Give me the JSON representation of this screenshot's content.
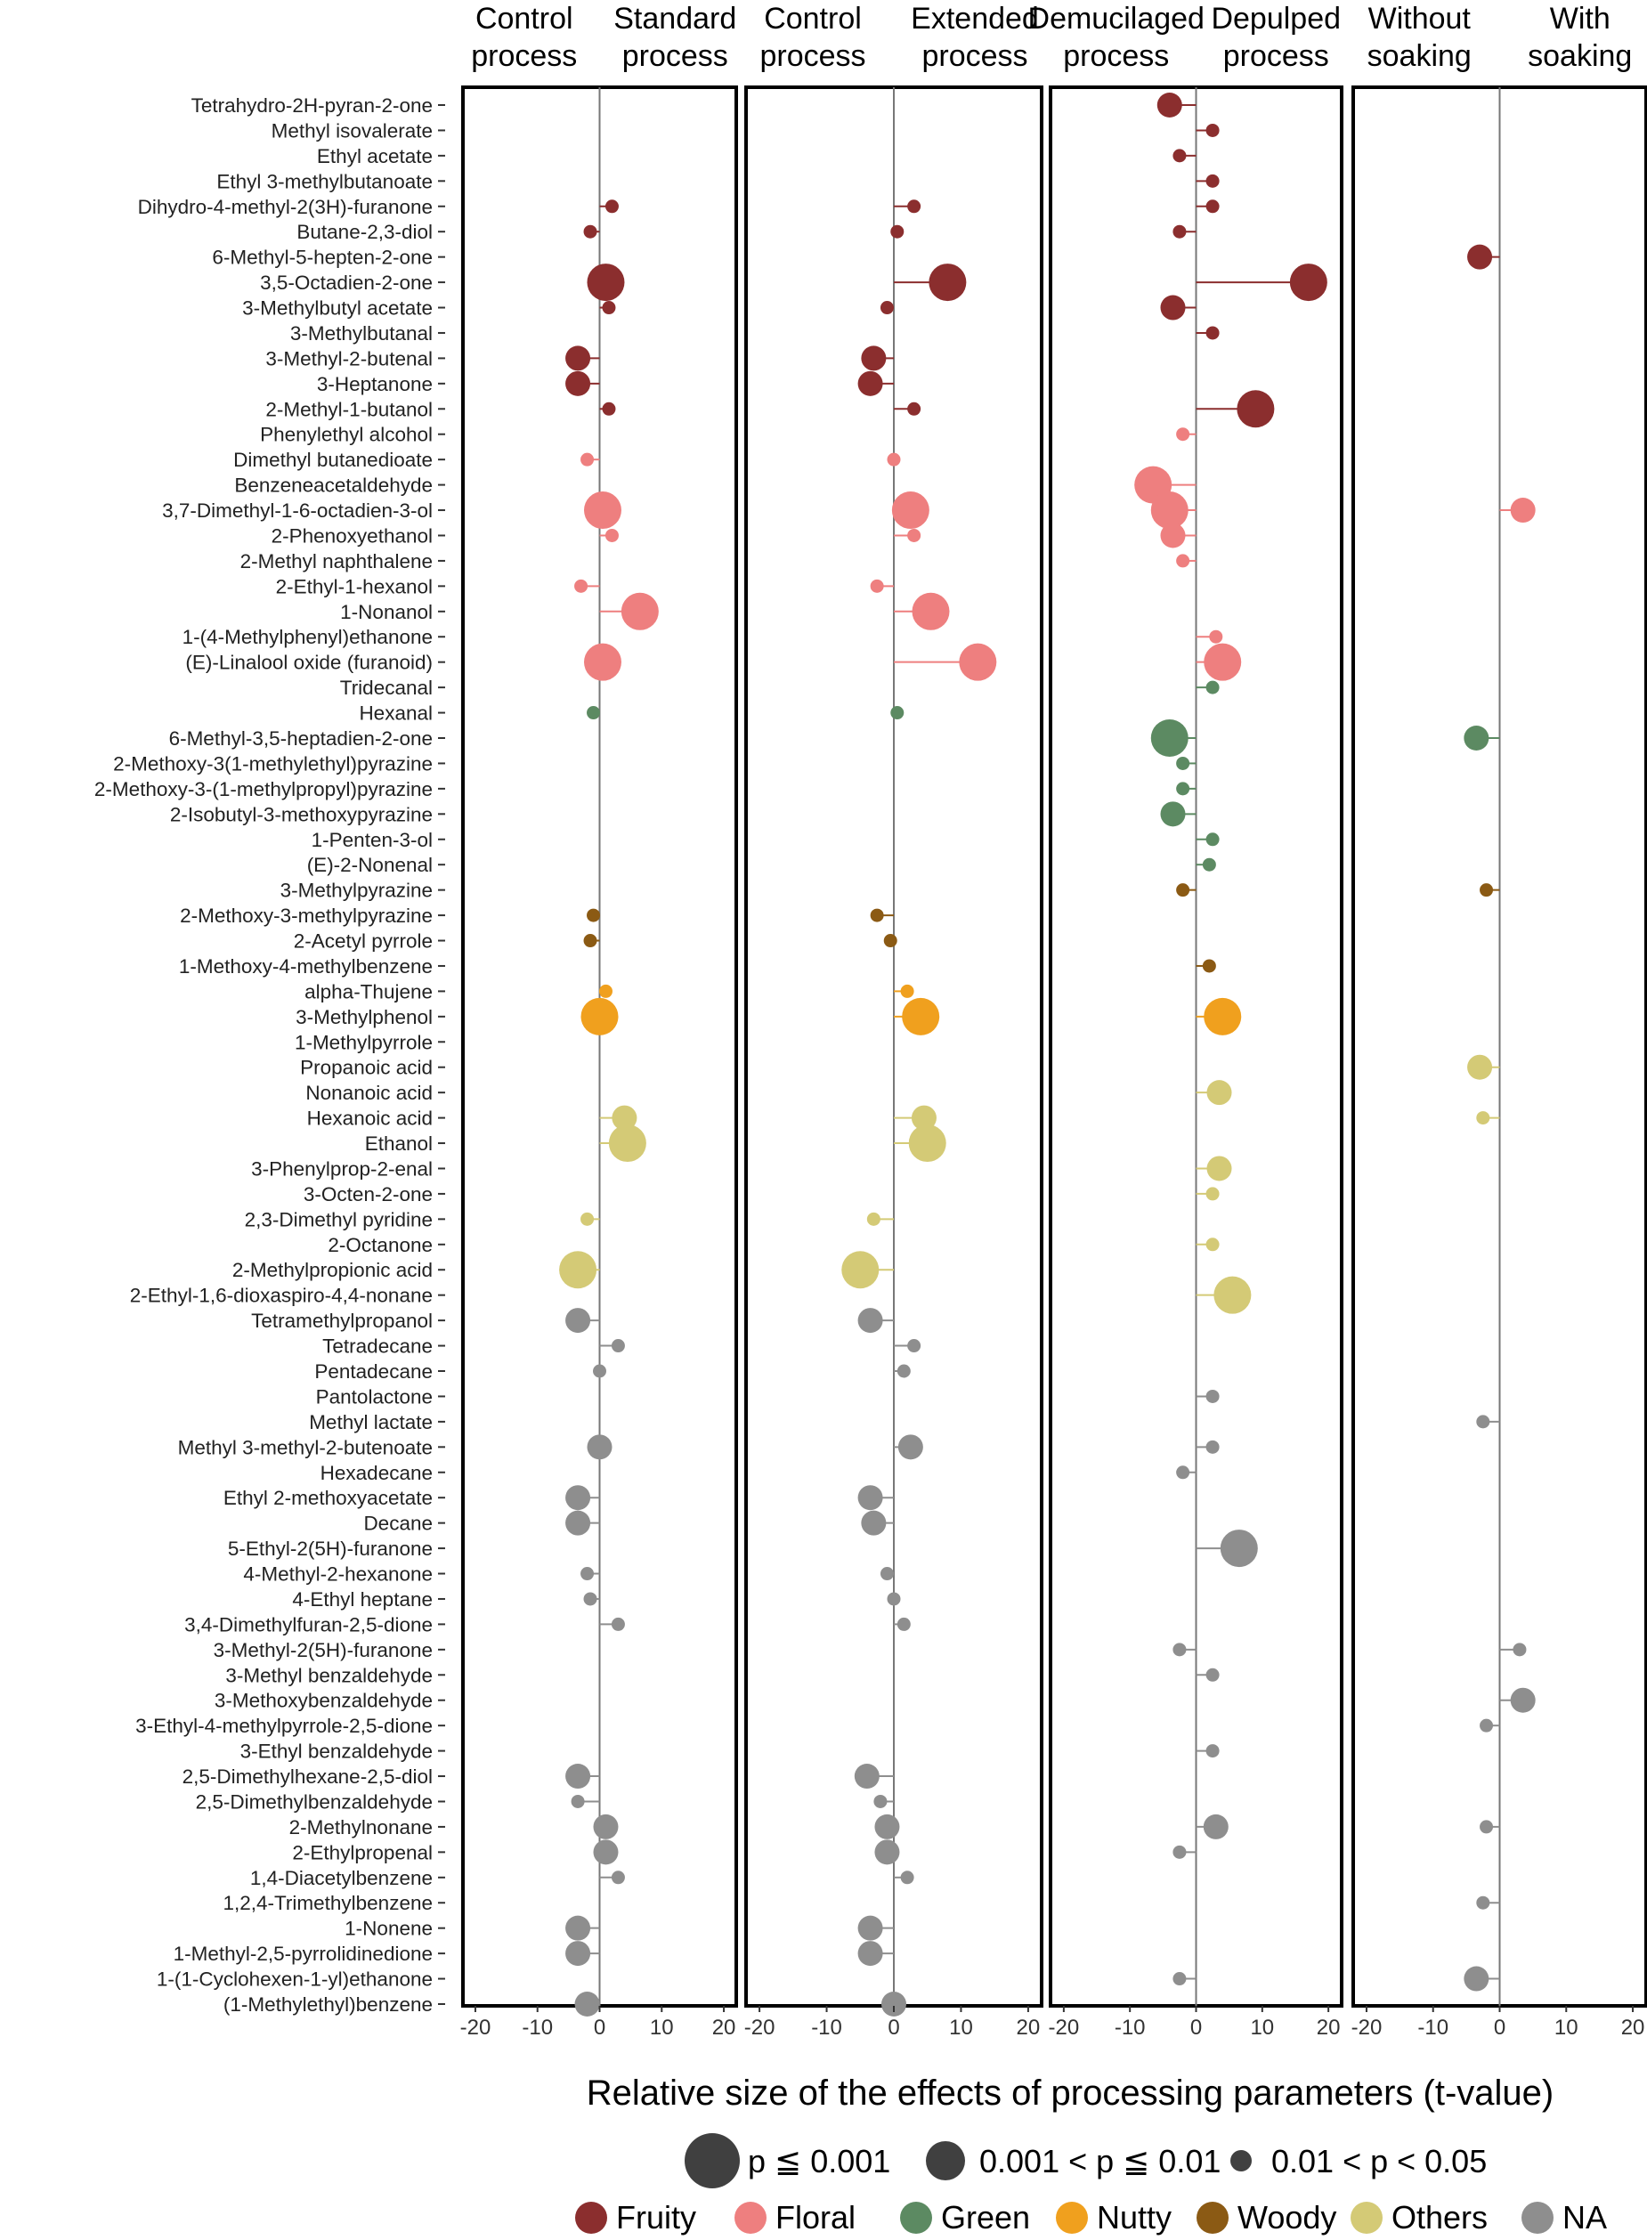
{
  "chart_data": {
    "type": "scatter",
    "subtype": "lollipop bubble panels",
    "xlabel": "Relative size of the effects of processing parameters (t-value)",
    "xlim": [
      -22,
      22
    ],
    "xticks": [
      -20,
      -10,
      0,
      10,
      20
    ],
    "xtick_labels": [
      "-20",
      "-10",
      "0",
      "10",
      "20"
    ],
    "panels": [
      {
        "left_label": [
          "Control",
          "process"
        ],
        "right_label": [
          "Standard",
          "process"
        ]
      },
      {
        "left_label": [
          "Control",
          "process"
        ],
        "right_label": [
          "Extended",
          "process"
        ]
      },
      {
        "left_label": [
          "Demucilaged",
          "process"
        ],
        "right_label": [
          "Depulped",
          "process"
        ]
      },
      {
        "left_label": [
          "Without",
          "soaking"
        ],
        "right_label": [
          "With",
          "soaking"
        ]
      }
    ],
    "significance_legend": [
      {
        "label": "p ≦ 0.001",
        "size": 3
      },
      {
        "label": "0.001 < p ≦ 0.01",
        "size": 2
      },
      {
        "label": "0.01 < p < 0.05",
        "size": 1
      }
    ],
    "category_legend": [
      {
        "label": "Fruity",
        "color": "#8B2E2E"
      },
      {
        "label": "Floral",
        "color": "#EE7F7F"
      },
      {
        "label": "Green",
        "color": "#5C8A62"
      },
      {
        "label": "Nutty",
        "color": "#F0A01E"
      },
      {
        "label": "Woody",
        "color": "#8B5A14"
      },
      {
        "label": "Others",
        "color": "#D4CA76"
      },
      {
        "label": "NA",
        "color": "#8E8E8E"
      }
    ],
    "compounds": [
      {
        "name": "Tetrahydro-2H-pyran-2-one",
        "cat": "Fruity",
        "t": [
          null,
          null,
          [
            -4,
            2
          ],
          null
        ]
      },
      {
        "name": "Methyl isovalerate",
        "cat": "Fruity",
        "t": [
          null,
          null,
          [
            2.5,
            1
          ],
          null
        ]
      },
      {
        "name": "Ethyl acetate",
        "cat": "Fruity",
        "t": [
          null,
          null,
          [
            -2.5,
            1
          ],
          null
        ]
      },
      {
        "name": "Ethyl 3-methylbutanoate",
        "cat": "Fruity",
        "t": [
          null,
          null,
          [
            2.5,
            1
          ],
          null
        ]
      },
      {
        "name": "Dihydro-4-methyl-2(3H)-furanone",
        "cat": "Fruity",
        "t": [
          [
            2,
            1
          ],
          [
            3,
            1
          ],
          [
            2.5,
            1
          ],
          null
        ]
      },
      {
        "name": "Butane-2,3-diol",
        "cat": "Fruity",
        "t": [
          [
            -1.5,
            1
          ],
          [
            0.5,
            1
          ],
          [
            -2.5,
            1
          ],
          null
        ]
      },
      {
        "name": "6-Methyl-5-hepten-2-one",
        "cat": "Fruity",
        "t": [
          null,
          null,
          null,
          [
            -3,
            2
          ]
        ]
      },
      {
        "name": "3,5-Octadien-2-one",
        "cat": "Fruity",
        "t": [
          [
            1,
            3
          ],
          [
            8,
            3
          ],
          [
            17,
            3
          ],
          null
        ]
      },
      {
        "name": "3-Methylbutyl acetate",
        "cat": "Fruity",
        "t": [
          [
            1.5,
            1
          ],
          [
            -1,
            1
          ],
          [
            -3.5,
            2
          ],
          null
        ]
      },
      {
        "name": "3-Methylbutanal",
        "cat": "Fruity",
        "t": [
          null,
          null,
          [
            2.5,
            1
          ],
          null
        ]
      },
      {
        "name": "3-Methyl-2-butenal",
        "cat": "Fruity",
        "t": [
          [
            -3.5,
            2
          ],
          [
            -3,
            2
          ],
          null,
          null
        ]
      },
      {
        "name": "3-Heptanone",
        "cat": "Fruity",
        "t": [
          [
            -3.5,
            2
          ],
          [
            -3.5,
            2
          ],
          null,
          null
        ]
      },
      {
        "name": "2-Methyl-1-butanol",
        "cat": "Fruity",
        "t": [
          [
            1.5,
            1
          ],
          [
            3,
            1
          ],
          [
            9,
            3
          ],
          null
        ]
      },
      {
        "name": "Phenylethyl alcohol",
        "cat": "Floral",
        "t": [
          null,
          null,
          [
            -2,
            1
          ],
          null
        ]
      },
      {
        "name": "Dimethyl butanedioate",
        "cat": "Floral",
        "t": [
          [
            -2,
            1
          ],
          [
            0,
            1
          ],
          null,
          null
        ]
      },
      {
        "name": "Benzeneacetaldehyde",
        "cat": "Floral",
        "t": [
          null,
          null,
          [
            -6.5,
            3
          ],
          null
        ]
      },
      {
        "name": "3,7-Dimethyl-1-6-octadien-3-ol",
        "cat": "Floral",
        "t": [
          [
            0.5,
            3
          ],
          [
            2.5,
            3
          ],
          [
            -4,
            3
          ],
          [
            3.5,
            2
          ]
        ]
      },
      {
        "name": "2-Phenoxyethanol",
        "cat": "Floral",
        "t": [
          [
            2,
            1
          ],
          [
            3,
            1
          ],
          [
            -3.5,
            2
          ],
          null
        ]
      },
      {
        "name": "2-Methyl naphthalene",
        "cat": "Floral",
        "t": [
          null,
          null,
          [
            -2,
            1
          ],
          null
        ]
      },
      {
        "name": "2-Ethyl-1-hexanol",
        "cat": "Floral",
        "t": [
          [
            -3,
            1
          ],
          [
            -2.5,
            1
          ],
          null,
          null
        ]
      },
      {
        "name": "1-Nonanol",
        "cat": "Floral",
        "t": [
          [
            6.5,
            3
          ],
          [
            5.5,
            3
          ],
          null,
          null
        ]
      },
      {
        "name": "1-(4-Methylphenyl)ethanone",
        "cat": "Floral",
        "t": [
          null,
          null,
          [
            3,
            1
          ],
          null
        ]
      },
      {
        "name": "(E)-Linalool oxide (furanoid)",
        "cat": "Floral",
        "t": [
          [
            0.5,
            3
          ],
          [
            12.5,
            3
          ],
          [
            4,
            3
          ],
          null
        ]
      },
      {
        "name": "Tridecanal",
        "cat": "Green",
        "t": [
          null,
          null,
          [
            2.5,
            1
          ],
          null
        ]
      },
      {
        "name": "Hexanal",
        "cat": "Green",
        "t": [
          [
            -1,
            1
          ],
          [
            0.5,
            1
          ],
          null,
          null
        ]
      },
      {
        "name": "6-Methyl-3,5-heptadien-2-one",
        "cat": "Green",
        "t": [
          null,
          null,
          [
            -4,
            3
          ],
          [
            -3.5,
            2
          ]
        ]
      },
      {
        "name": "2-Methoxy-3(1-methylethyl)pyrazine",
        "cat": "Green",
        "t": [
          null,
          null,
          [
            -2,
            1
          ],
          null
        ]
      },
      {
        "name": "2-Methoxy-3-(1-methylpropyl)pyrazine",
        "cat": "Green",
        "t": [
          null,
          null,
          [
            -2,
            1
          ],
          null
        ]
      },
      {
        "name": "2-Isobutyl-3-methoxypyrazine",
        "cat": "Green",
        "t": [
          null,
          null,
          [
            -3.5,
            2
          ],
          null
        ]
      },
      {
        "name": "1-Penten-3-ol",
        "cat": "Green",
        "t": [
          null,
          null,
          [
            2.5,
            1
          ],
          null
        ]
      },
      {
        "name": "(E)-2-Nonenal",
        "cat": "Green",
        "t": [
          null,
          null,
          [
            2,
            1
          ],
          null
        ]
      },
      {
        "name": "3-Methylpyrazine",
        "cat": "Woody",
        "t": [
          null,
          null,
          [
            -2,
            1
          ],
          [
            -2,
            1
          ]
        ]
      },
      {
        "name": "2-Methoxy-3-methylpyrazine",
        "cat": "Woody",
        "t": [
          [
            -1,
            1
          ],
          [
            -2.5,
            1
          ],
          null,
          null
        ]
      },
      {
        "name": "2-Acetyl pyrrole",
        "cat": "Woody",
        "t": [
          [
            -1.5,
            1
          ],
          [
            -0.5,
            1
          ],
          null,
          null
        ]
      },
      {
        "name": "1-Methoxy-4-methylbenzene",
        "cat": "Woody",
        "t": [
          null,
          null,
          [
            2,
            1
          ],
          null
        ]
      },
      {
        "name": "alpha-Thujene",
        "cat": "Nutty",
        "t": [
          [
            1,
            1
          ],
          [
            2,
            1
          ],
          null,
          null
        ]
      },
      {
        "name": "3-Methylphenol",
        "cat": "Nutty",
        "t": [
          [
            0,
            3
          ],
          [
            4,
            3
          ],
          [
            4,
            3
          ],
          null
        ]
      },
      {
        "name": "1-Methylpyrrole",
        "cat": "Nutty",
        "t": [
          null,
          null,
          null,
          null
        ]
      },
      {
        "name": "Propanoic acid",
        "cat": "Others",
        "t": [
          null,
          null,
          null,
          [
            -3,
            2
          ]
        ]
      },
      {
        "name": "Nonanoic acid",
        "cat": "Others",
        "t": [
          null,
          null,
          [
            3.5,
            2
          ],
          null
        ]
      },
      {
        "name": "Hexanoic acid",
        "cat": "Others",
        "t": [
          [
            4,
            2
          ],
          [
            4.5,
            2
          ],
          null,
          [
            -2.5,
            1
          ]
        ]
      },
      {
        "name": "Ethanol",
        "cat": "Others",
        "t": [
          [
            4.5,
            3
          ],
          [
            5,
            3
          ],
          null,
          null
        ]
      },
      {
        "name": "3-Phenylprop-2-enal",
        "cat": "Others",
        "t": [
          null,
          null,
          [
            3.5,
            2
          ],
          null
        ]
      },
      {
        "name": "3-Octen-2-one",
        "cat": "Others",
        "t": [
          null,
          null,
          [
            2.5,
            1
          ],
          null
        ]
      },
      {
        "name": "2,3-Dimethyl pyridine",
        "cat": "Others",
        "t": [
          [
            -2,
            1
          ],
          [
            -3,
            1
          ],
          null,
          null
        ]
      },
      {
        "name": "2-Octanone",
        "cat": "Others",
        "t": [
          null,
          null,
          [
            2.5,
            1
          ],
          null
        ]
      },
      {
        "name": "2-Methylpropionic acid",
        "cat": "Others",
        "t": [
          [
            -3.5,
            3
          ],
          [
            -5,
            3
          ],
          null,
          null
        ]
      },
      {
        "name": "2-Ethyl-1,6-dioxaspiro-4,4-nonane",
        "cat": "Others",
        "t": [
          null,
          null,
          [
            5.5,
            3
          ],
          null
        ]
      },
      {
        "name": "Tetramethylpropanol",
        "cat": "NA",
        "t": [
          [
            -3.5,
            2
          ],
          [
            -3.5,
            2
          ],
          null,
          null
        ]
      },
      {
        "name": "Tetradecane",
        "cat": "NA",
        "t": [
          [
            3,
            1
          ],
          [
            3,
            1
          ],
          null,
          null
        ]
      },
      {
        "name": "Pentadecane",
        "cat": "NA",
        "t": [
          [
            0,
            1
          ],
          [
            1.5,
            1
          ],
          null,
          null
        ]
      },
      {
        "name": "Pantolactone",
        "cat": "NA",
        "t": [
          null,
          null,
          [
            2.5,
            1
          ],
          null
        ]
      },
      {
        "name": "Methyl lactate",
        "cat": "NA",
        "t": [
          null,
          null,
          null,
          [
            -2.5,
            1
          ]
        ]
      },
      {
        "name": "Methyl 3-methyl-2-butenoate",
        "cat": "NA",
        "t": [
          [
            0,
            2
          ],
          [
            2.5,
            2
          ],
          [
            2.5,
            1
          ],
          null
        ]
      },
      {
        "name": "Hexadecane",
        "cat": "NA",
        "t": [
          null,
          null,
          [
            -2,
            1
          ],
          null
        ]
      },
      {
        "name": "Ethyl 2-methoxyacetate",
        "cat": "NA",
        "t": [
          [
            -3.5,
            2
          ],
          [
            -3.5,
            2
          ],
          null,
          null
        ]
      },
      {
        "name": "Decane",
        "cat": "NA",
        "t": [
          [
            -3.5,
            2
          ],
          [
            -3,
            2
          ],
          null,
          null
        ]
      },
      {
        "name": "5-Ethyl-2(5H)-furanone",
        "cat": "NA",
        "t": [
          null,
          null,
          [
            6.5,
            3
          ],
          null
        ]
      },
      {
        "name": "4-Methyl-2-hexanone",
        "cat": "NA",
        "t": [
          [
            -2,
            1
          ],
          [
            -1,
            1
          ],
          null,
          null
        ]
      },
      {
        "name": "4-Ethyl heptane",
        "cat": "NA",
        "t": [
          [
            -1.5,
            1
          ],
          [
            0,
            1
          ],
          null,
          null
        ]
      },
      {
        "name": "3,4-Dimethylfuran-2,5-dione",
        "cat": "NA",
        "t": [
          [
            3,
            1
          ],
          [
            1.5,
            1
          ],
          null,
          null
        ]
      },
      {
        "name": "3-Methyl-2(5H)-furanone",
        "cat": "NA",
        "t": [
          null,
          null,
          [
            -2.5,
            1
          ],
          [
            3,
            1
          ]
        ]
      },
      {
        "name": "3-Methyl benzaldehyde",
        "cat": "NA",
        "t": [
          null,
          null,
          [
            2.5,
            1
          ],
          null
        ]
      },
      {
        "name": "3-Methoxybenzaldehyde",
        "cat": "NA",
        "t": [
          null,
          null,
          null,
          [
            3.5,
            2
          ]
        ]
      },
      {
        "name": "3-Ethyl-4-methylpyrrole-2,5-dione",
        "cat": "NA",
        "t": [
          null,
          null,
          null,
          [
            -2,
            1
          ]
        ]
      },
      {
        "name": "3-Ethyl benzaldehyde",
        "cat": "NA",
        "t": [
          null,
          null,
          [
            2.5,
            1
          ],
          null
        ]
      },
      {
        "name": "2,5-Dimethylhexane-2,5-diol",
        "cat": "NA",
        "t": [
          [
            -3.5,
            2
          ],
          [
            -4,
            2
          ],
          null,
          null
        ]
      },
      {
        "name": "2,5-Dimethylbenzaldehyde",
        "cat": "NA",
        "t": [
          [
            -3.5,
            1
          ],
          [
            -2,
            1
          ],
          null,
          null
        ]
      },
      {
        "name": "2-Methylnonane",
        "cat": "NA",
        "t": [
          [
            1,
            2
          ],
          [
            -1,
            2
          ],
          [
            3,
            2
          ],
          [
            -2,
            1
          ]
        ]
      },
      {
        "name": "2-Ethylpropenal",
        "cat": "NA",
        "t": [
          [
            1,
            2
          ],
          [
            -1,
            2
          ],
          [
            -2.5,
            1
          ],
          null
        ]
      },
      {
        "name": "1,4-Diacetylbenzene",
        "cat": "NA",
        "t": [
          [
            3,
            1
          ],
          [
            2,
            1
          ],
          null,
          null
        ]
      },
      {
        "name": "1,2,4-Trimethylbenzene",
        "cat": "NA",
        "t": [
          null,
          null,
          null,
          [
            -2.5,
            1
          ]
        ]
      },
      {
        "name": "1-Nonene",
        "cat": "NA",
        "t": [
          [
            -3.5,
            2
          ],
          [
            -3.5,
            2
          ],
          null,
          null
        ]
      },
      {
        "name": "1-Methyl-2,5-pyrrolidinedione",
        "cat": "NA",
        "t": [
          [
            -3.5,
            2
          ],
          [
            -3.5,
            2
          ],
          null,
          null
        ]
      },
      {
        "name": "1-(1-Cyclohexen-1-yl)ethanone",
        "cat": "NA",
        "t": [
          null,
          null,
          [
            -2.5,
            1
          ],
          [
            -3.5,
            2
          ]
        ]
      },
      {
        "name": "(1-Methylethyl)benzene",
        "cat": "NA",
        "t": [
          [
            -2,
            2
          ],
          [
            0,
            2
          ],
          null,
          null
        ]
      }
    ]
  }
}
